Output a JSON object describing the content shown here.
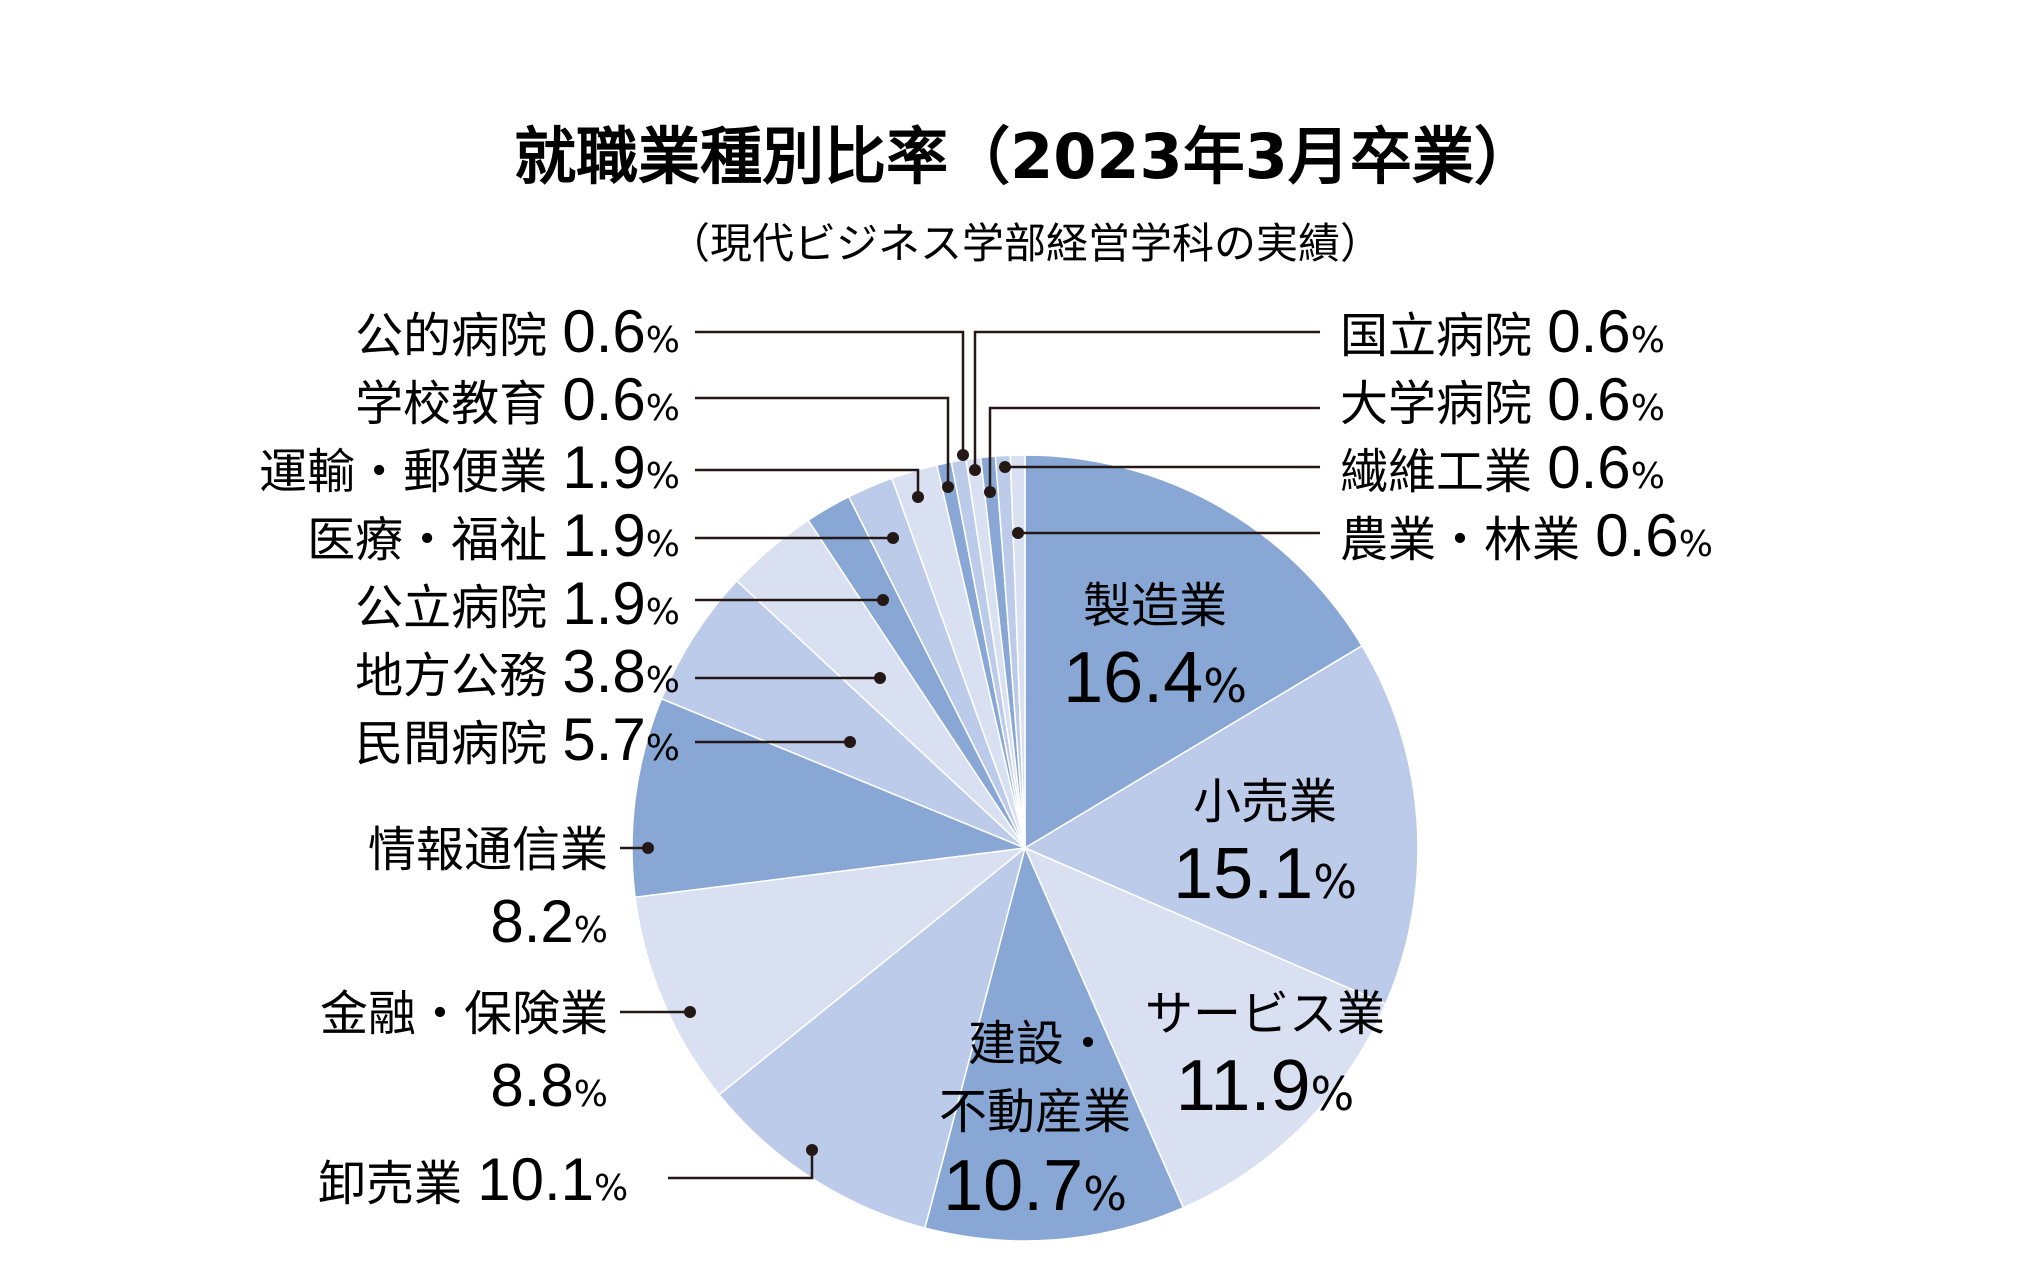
{
  "chart_data": {
    "type": "pie",
    "title": "就職業種別比率（2023年3月卒業）",
    "subtitle": "（現代ビジネス学部経営学科の実績）",
    "unit": "%",
    "slices": [
      {
        "label": "製造業",
        "value": 16.4,
        "color": "#89a7d5"
      },
      {
        "label": "小売業",
        "value": 15.1,
        "color": "#bccbe9"
      },
      {
        "label": "サービス業",
        "value": 11.9,
        "color": "#d9e0f2"
      },
      {
        "label": "建設・不動産業",
        "value": 10.7,
        "color": "#89a7d5"
      },
      {
        "label": "卸売業",
        "value": 10.1,
        "color": "#bccbe9"
      },
      {
        "label": "金融・保険業",
        "value": 8.8,
        "color": "#d9e0f2"
      },
      {
        "label": "情報通信業",
        "value": 8.2,
        "color": "#89a7d5"
      },
      {
        "label": "民間病院",
        "value": 5.7,
        "color": "#bccbe9"
      },
      {
        "label": "地方公務",
        "value": 3.8,
        "color": "#d9e0f2"
      },
      {
        "label": "公立病院",
        "value": 1.9,
        "color": "#89a7d5"
      },
      {
        "label": "医療・福祉",
        "value": 1.9,
        "color": "#bccbe9"
      },
      {
        "label": "運輸・郵便業",
        "value": 1.9,
        "color": "#d9e0f2"
      },
      {
        "label": "学校教育",
        "value": 0.6,
        "color": "#89a7d5"
      },
      {
        "label": "公的病院",
        "value": 0.6,
        "color": "#bccbe9"
      },
      {
        "label": "国立病院",
        "value": 0.6,
        "color": "#d9e0f2"
      },
      {
        "label": "大学病院",
        "value": 0.6,
        "color": "#89a7d5"
      },
      {
        "label": "繊維工業",
        "value": 0.6,
        "color": "#bccbe9"
      },
      {
        "label": "農業・林業",
        "value": 0.6,
        "color": "#d9e0f2"
      }
    ],
    "value_labels": [
      "16.4",
      "15.1",
      "11.9",
      "10.7",
      "10.1",
      "8.8",
      "8.2",
      "5.7",
      "3.8",
      "1.9",
      "1.9",
      "1.9",
      "0.6",
      "0.6",
      "0.6",
      "0.6",
      "0.6",
      "0.6"
    ]
  }
}
